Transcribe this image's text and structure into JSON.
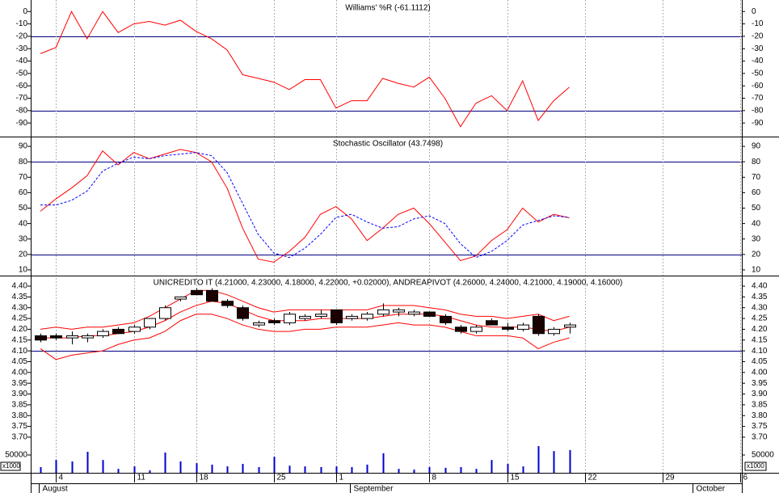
{
  "chart_data": [
    {
      "type": "line",
      "title": "Williams' %R (-61.1112)",
      "ylim": [
        -101,
        8
      ],
      "yticks": [
        0,
        -10,
        -20,
        -30,
        -40,
        -50,
        -60,
        -70,
        -80,
        -90
      ],
      "reference_lines": [
        -20,
        -80
      ],
      "reference_color": "#000080",
      "series": [
        {
          "color": "#ff0000",
          "dashed": false,
          "values": [
            -34,
            -29,
            0,
            -22,
            0,
            -17,
            -10,
            -8,
            -11,
            -7,
            -16,
            -22,
            -31,
            -51,
            -54,
            -57,
            -63,
            -55,
            -55,
            -78,
            -72,
            -72,
            -54,
            -58,
            -61,
            -53,
            -70,
            -93,
            -74,
            -68,
            -80,
            -56,
            -88,
            -72,
            -61.1,
            null,
            null,
            null,
            null,
            null,
            null,
            null,
            null,
            null,
            null,
            null
          ]
        }
      ]
    },
    {
      "type": "line",
      "title": "Stochastic Oscillator (43.7498)",
      "ylim": [
        6.3,
        95.8
      ],
      "yticks": [
        90,
        80,
        70,
        60,
        50,
        40,
        30,
        20,
        10
      ],
      "reference_lines": [
        80,
        20
      ],
      "reference_color": "#000080",
      "series": [
        {
          "color": "#ff0000",
          "dashed": false,
          "values": [
            48,
            56,
            63,
            71,
            87,
            78,
            86,
            82,
            85,
            88,
            86,
            80,
            63,
            37,
            17,
            15,
            22,
            31,
            46,
            51,
            43,
            29,
            37,
            46,
            50,
            40,
            28,
            16,
            19,
            29,
            36,
            50,
            41,
            46,
            43.7,
            null,
            null,
            null,
            null,
            null,
            null,
            null,
            null,
            null,
            null,
            null
          ]
        },
        {
          "color": "#0000ff",
          "dashed": true,
          "values": [
            52,
            52,
            55,
            61,
            74,
            79,
            83,
            82,
            84,
            85,
            86,
            84,
            73,
            53,
            33,
            21,
            18,
            24,
            33,
            44,
            46,
            41,
            37,
            38,
            43,
            45,
            40,
            27,
            18,
            22,
            29,
            39,
            42,
            45,
            44,
            null,
            null,
            null,
            null,
            null,
            null,
            null,
            null,
            null,
            null,
            null
          ]
        }
      ]
    },
    {
      "type": "candlestick",
      "title": "UNICREDITO IT (4.21000, 4.23000, 4.18000, 4.22000, +0.02000), ANDREAPIVOT (4.26000, 4.24000, 4.21000, 4.19000, 4.16000)",
      "ylim": [
        3.535,
        4.445
      ],
      "yticks": [
        {
          "value": 4.4,
          "label": "4.40"
        },
        {
          "value": 4.35,
          "label": "4.35"
        },
        {
          "value": 4.3,
          "label": "4.30"
        },
        {
          "value": 4.25,
          "label": "4.25"
        },
        {
          "value": 4.2,
          "label": "4.20"
        },
        {
          "value": 4.15,
          "label": "4.15"
        },
        {
          "value": 4.1,
          "label": "4.10"
        },
        {
          "value": 4.05,
          "label": "4.05"
        },
        {
          "value": 4.0,
          "label": "4.00"
        },
        {
          "value": 3.95,
          "label": "3.95"
        },
        {
          "value": 3.9,
          "label": "3.90"
        },
        {
          "value": 3.85,
          "label": "3.85"
        },
        {
          "value": 3.8,
          "label": "3.80"
        },
        {
          "value": 3.75,
          "label": "3.75"
        },
        {
          "value": 3.7,
          "label": "3.70"
        }
      ],
      "reference_lines": [
        4.1
      ],
      "reference_color": "#000080",
      "categories": [
        null,
        "4",
        null,
        null,
        null,
        null,
        "11",
        null,
        null,
        null,
        "18",
        null,
        null,
        null,
        null,
        "25",
        null,
        null,
        null,
        "1",
        null,
        null,
        null,
        null,
        null,
        "8",
        null,
        null,
        null,
        null,
        "15",
        null,
        null,
        null,
        null,
        "22",
        null,
        null,
        null,
        null,
        "29",
        null,
        null,
        null,
        null,
        "6"
      ],
      "month_labels": [
        "August",
        null,
        null,
        null,
        null,
        null,
        null,
        null,
        null,
        null,
        null,
        null,
        null,
        null,
        null,
        null,
        null,
        null,
        null,
        null,
        "September",
        null,
        null,
        null,
        null,
        null,
        null,
        null,
        null,
        null,
        null,
        null,
        null,
        null,
        null,
        null,
        null,
        null,
        null,
        null,
        null,
        null,
        "October",
        null,
        null,
        null
      ],
      "open": [
        4.17,
        4.17,
        4.16,
        4.16,
        4.17,
        4.2,
        4.19,
        4.21,
        4.25,
        4.34,
        4.38,
        4.38,
        4.33,
        4.3,
        4.22,
        4.24,
        4.23,
        4.25,
        4.26,
        4.29,
        4.25,
        4.25,
        4.27,
        4.28,
        4.27,
        4.28,
        4.26,
        4.21,
        4.19,
        4.24,
        4.21,
        4.2,
        4.26,
        4.18,
        4.21,
        null,
        null,
        null,
        null,
        null,
        null,
        null,
        null,
        null,
        null,
        null
      ],
      "high": [
        4.18,
        4.18,
        4.19,
        4.18,
        4.2,
        4.21,
        4.22,
        4.25,
        4.31,
        4.35,
        4.39,
        4.39,
        4.34,
        4.31,
        4.24,
        4.25,
        4.28,
        4.27,
        4.29,
        4.29,
        4.27,
        4.28,
        4.32,
        4.3,
        4.29,
        4.28,
        4.27,
        4.22,
        4.22,
        4.25,
        4.23,
        4.23,
        4.27,
        4.21,
        4.23,
        null,
        null,
        null,
        null,
        null,
        null,
        null,
        null,
        null,
        null,
        null
      ],
      "low": [
        4.14,
        4.15,
        4.13,
        4.14,
        4.16,
        4.18,
        4.18,
        4.2,
        4.24,
        4.33,
        4.36,
        4.33,
        4.3,
        4.24,
        4.21,
        4.22,
        4.22,
        4.24,
        4.25,
        4.22,
        4.24,
        4.24,
        4.26,
        4.26,
        4.26,
        4.26,
        4.22,
        4.18,
        4.18,
        4.22,
        4.19,
        4.19,
        4.17,
        4.17,
        4.18,
        null,
        null,
        null,
        null,
        null,
        null,
        null,
        null,
        null,
        null,
        null
      ],
      "close": [
        4.15,
        4.16,
        4.17,
        4.17,
        4.19,
        4.18,
        4.21,
        4.25,
        4.3,
        4.35,
        4.36,
        4.33,
        4.31,
        4.25,
        4.23,
        4.23,
        4.27,
        4.26,
        4.27,
        4.23,
        4.26,
        4.27,
        4.29,
        4.29,
        4.28,
        4.26,
        4.23,
        4.19,
        4.21,
        4.22,
        4.2,
        4.22,
        4.18,
        4.2,
        4.22,
        null,
        null,
        null,
        null,
        null,
        null,
        null,
        null,
        null,
        null,
        null
      ],
      "up_color": "#ffffff",
      "down_color": "#1a0000",
      "series": [
        {
          "color": "#ff0000",
          "values": [
            4.2,
            4.21,
            4.2,
            4.21,
            4.21,
            4.22,
            4.23,
            4.26,
            4.3,
            4.34,
            4.38,
            4.38,
            4.36,
            4.33,
            4.3,
            4.28,
            4.29,
            4.29,
            4.29,
            4.29,
            4.29,
            4.29,
            4.31,
            4.31,
            4.31,
            4.3,
            4.29,
            4.27,
            4.26,
            4.26,
            4.25,
            4.26,
            4.27,
            4.24,
            4.26,
            null,
            null,
            null,
            null,
            null,
            null,
            null,
            null,
            null,
            null,
            null
          ]
        },
        {
          "color": "#ff0000",
          "values": [
            4.16,
            4.16,
            4.16,
            4.17,
            4.17,
            4.18,
            4.19,
            4.21,
            4.24,
            4.28,
            4.31,
            4.33,
            4.32,
            4.29,
            4.26,
            4.24,
            4.24,
            4.24,
            4.25,
            4.25,
            4.25,
            4.25,
            4.26,
            4.27,
            4.27,
            4.27,
            4.26,
            4.24,
            4.22,
            4.21,
            4.21,
            4.21,
            4.2,
            4.19,
            4.21,
            null,
            null,
            null,
            null,
            null,
            null,
            null,
            null,
            null,
            null,
            null
          ]
        },
        {
          "color": "#ff0000",
          "values": [
            4.11,
            4.06,
            4.08,
            4.09,
            4.1,
            4.13,
            4.15,
            4.16,
            4.19,
            4.24,
            4.27,
            4.27,
            4.25,
            4.22,
            4.2,
            4.19,
            4.19,
            4.2,
            4.2,
            4.21,
            4.21,
            4.21,
            4.22,
            4.23,
            4.22,
            4.22,
            4.21,
            4.19,
            4.17,
            4.17,
            4.17,
            4.16,
            4.11,
            4.14,
            4.16,
            null,
            null,
            null,
            null,
            null,
            null,
            null,
            null,
            null,
            null,
            null
          ]
        }
      ],
      "volume": {
        "color": "#0000cc",
        "ylim": [
          0,
          100000
        ],
        "yticks": [
          50000
        ],
        "unit_label": "x1000",
        "values": [
          16000,
          36000,
          32000,
          59000,
          36000,
          11000,
          18000,
          7000,
          57000,
          32000,
          27000,
          23000,
          18000,
          25000,
          16000,
          45000,
          20000,
          18000,
          16000,
          18000,
          16000,
          23000,
          55000,
          11000,
          9000,
          16000,
          14000,
          16000,
          11000,
          36000,
          25000,
          18000,
          75000,
          61000,
          64000,
          null,
          null,
          null,
          null,
          null,
          null,
          null,
          null,
          null,
          null,
          null
        ]
      },
      "grid": true
    }
  ]
}
